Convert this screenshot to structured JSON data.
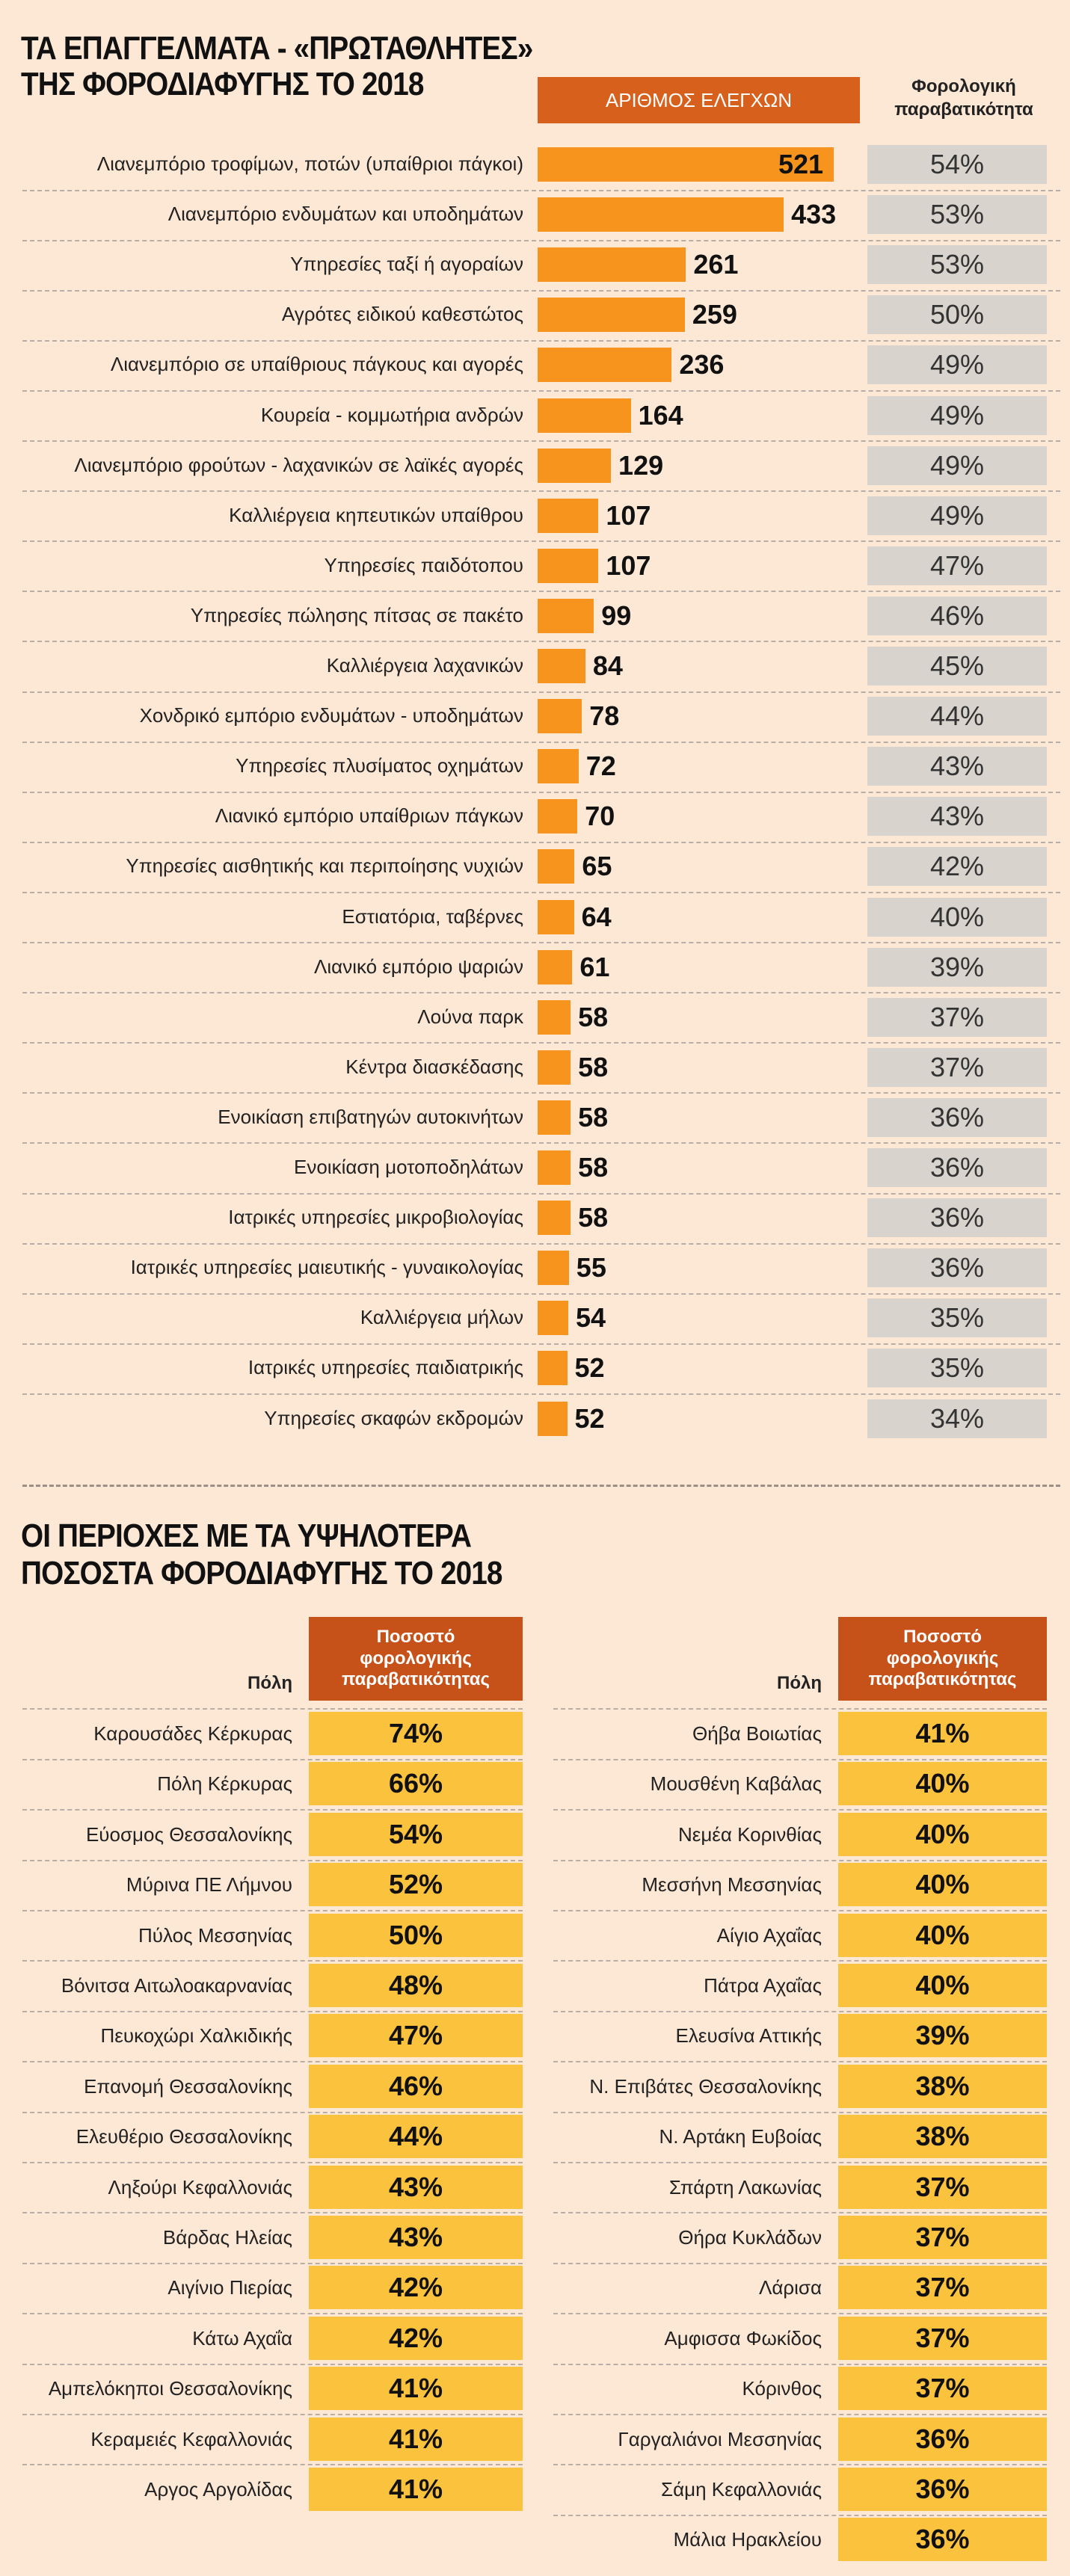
{
  "chart_data": {
    "type": "bar",
    "title": [
      "ΤΑ ΕΠΑΓΓΕΛΜΑΤΑ - «ΠΡΩΤΑΘΛΗΤΕΣ»",
      "ΤΗΣ ΦΟΡΟΔΙΑΦΥΓΗΣ ΤΟ 2018"
    ],
    "value_header": "ΑΡΙΘΜΟΣ ΕΛΕΓΧΩΝ",
    "rate_header": "Φορολογική παραβατικότητα",
    "color": "#f7941d",
    "categories": [
      "Λιανεμπόριο τροφίμων, ποτών (υπαίθριοι πάγκοι)",
      "Λιανεμπόριο ενδυμάτων και υποδημάτων",
      "Υπηρεσίες ταξί ή αγοραίων",
      "Αγρότες ειδικού καθεστώτος",
      "Λιανεμπόριο σε υπαίθριους πάγκους και αγορές",
      "Κουρεία - κομμωτήρια ανδρών",
      "Λιανεμπόριο φρούτων - λαχανικών σε λαϊκές αγορές",
      "Καλλιέργεια κηπευτικών υπαίθρου",
      "Υπηρεσίες παιδότοπου",
      "Υπηρεσίες πώλησης πίτσας σε πακέτο",
      "Καλλιέργεια λαχανικών",
      "Χονδρικό εμπόριο ενδυμάτων - υποδημάτων",
      "Υπηρεσίες πλυσίματος οχημάτων",
      "Λιανικό εμπόριο υπαίθριων πάγκων",
      "Υπηρεσίες αισθητικής και περιποίησης νυχιών",
      "Εστιατόρια, ταβέρνες",
      "Λιανικό εμπόριο ψαριών",
      "Λούνα παρκ",
      "Κέντρα διασκέδασης",
      "Ενοικίαση επιβατηγών αυτοκινήτων",
      "Ενοικίαση μοτοποδηλάτων",
      "Ιατρικές υπηρεσίες μικροβιολογίας",
      "Ιατρικές υπηρεσίες μαιευτικής - γυναικολογίας",
      "Καλλιέργεια μήλων",
      "Ιατρικές υπηρεσίες παιδιατρικής",
      "Υπηρεσίες σκαφών εκδρομών"
    ],
    "values": [
      521,
      433,
      261,
      259,
      236,
      164,
      129,
      107,
      107,
      99,
      84,
      78,
      72,
      70,
      65,
      64,
      61,
      58,
      58,
      58,
      58,
      58,
      55,
      54,
      52,
      52
    ],
    "rates": [
      "54%",
      "53%",
      "53%",
      "50%",
      "49%",
      "49%",
      "49%",
      "49%",
      "47%",
      "46%",
      "45%",
      "44%",
      "43%",
      "43%",
      "42%",
      "40%",
      "39%",
      "37%",
      "37%",
      "36%",
      "36%",
      "36%",
      "36%",
      "35%",
      "35%",
      "34%"
    ]
  },
  "regions": {
    "title": [
      "ΟΙ ΠΕΡΙΟΧΕΣ ΜΕ ΤΑ ΥΨΗΛΟΤΕΡΑ",
      "ΠΟΣΟΣΤΑ ΦΟΡΟΔΙΑΦΥΓΗΣ ΤΟ 2018"
    ],
    "tables": [
      {
        "city_header": "Πόλη",
        "rate_header": "Ποσοστό φορολογικής παραβατικότητας",
        "rows": [
          [
            "Καρουσάδες Κέρκυρας",
            "74%"
          ],
          [
            "Πόλη Κέρκυρας",
            "66%"
          ],
          [
            "Εύοσμος Θεσσαλονίκης",
            "54%"
          ],
          [
            "Μύρινα ΠΕ Λήμνου",
            "52%"
          ],
          [
            "Πύλος Μεσσηνίας",
            "50%"
          ],
          [
            "Βόνιτσα Αιτωλοακαρνανίας",
            "48%"
          ],
          [
            "Πευκοχώρι Χαλκιδικής",
            "47%"
          ],
          [
            "Επανομή Θεσσαλονίκης",
            "46%"
          ],
          [
            "Ελευθέριο Θεσσαλονίκης",
            "44%"
          ],
          [
            "Ληξούρι Κεφαλλονιάς",
            "43%"
          ],
          [
            "Βάρδας Ηλείας",
            "43%"
          ],
          [
            "Αιγίνιο Πιερίας",
            "42%"
          ],
          [
            "Κάτω Αχαΐα",
            "42%"
          ],
          [
            "Αμπελόκηποι Θεσσαλονίκης",
            "41%"
          ],
          [
            "Κεραμειές Κεφαλλονιάς",
            "41%"
          ],
          [
            "Αργος Αργολίδας",
            "41%"
          ]
        ]
      },
      {
        "city_header": "Πόλη",
        "rate_header": "Ποσοστό φορολογικής παραβατικότητας",
        "rows": [
          [
            "Θήβα Βοιωτίας",
            "41%"
          ],
          [
            "Μουσθένη Καβάλας",
            "40%"
          ],
          [
            "Νεμέα Κορινθίας",
            "40%"
          ],
          [
            "Μεσσήνη Μεσσηνίας",
            "40%"
          ],
          [
            "Αίγιο Αχαΐας",
            "40%"
          ],
          [
            "Πάτρα Αχαΐας",
            "40%"
          ],
          [
            "Ελευσίνα Αττικής",
            "39%"
          ],
          [
            "Ν. Επιβάτες Θεσσαλονίκης",
            "38%"
          ],
          [
            "Ν. Αρτάκη Ευβοίας",
            "38%"
          ],
          [
            "Σπάρτη Λακωνίας",
            "37%"
          ],
          [
            "Θήρα Κυκλάδων",
            "37%"
          ],
          [
            "Λάρισα",
            "37%"
          ],
          [
            "Αμφισσα Φωκίδος",
            "37%"
          ],
          [
            "Κόρινθος",
            "37%"
          ],
          [
            "Γαργαλιάνοι Μεσσηνίας",
            "36%"
          ],
          [
            "Σάμη Κεφαλλονιάς",
            "36%"
          ],
          [
            "Μάλια Ηρακλείου",
            "36%"
          ]
        ]
      }
    ]
  }
}
